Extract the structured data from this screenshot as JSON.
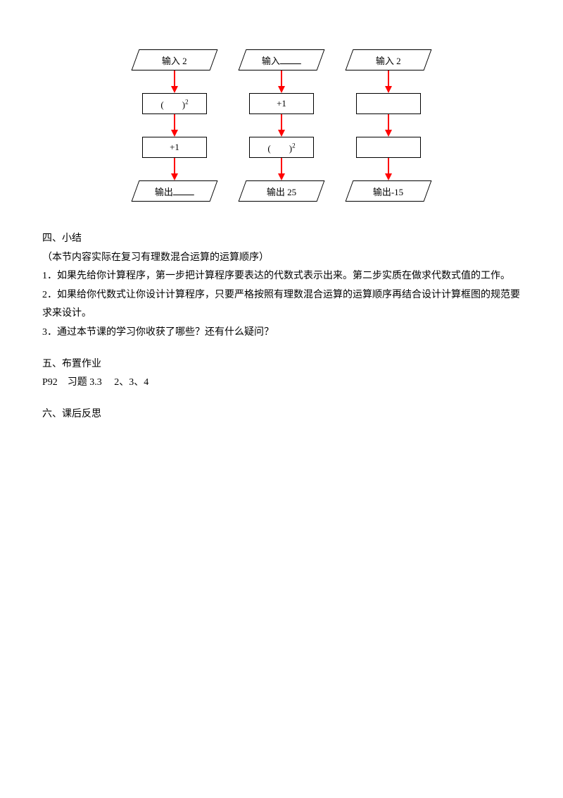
{
  "flowcharts": [
    {
      "input_label": "输入 2",
      "step1": "(　　)",
      "step1_sup": "2",
      "step2": "+1",
      "output_prefix": "输出",
      "output_value": "",
      "output_blank": true
    },
    {
      "input_prefix": "输入",
      "input_value": "",
      "input_blank": true,
      "step1": "+1",
      "step1_sup": "",
      "step2": "(　　)",
      "step2_sup": "2",
      "output_label": "输出 25"
    },
    {
      "input_label": "输入 2",
      "step1": "",
      "step2": "",
      "output_label": "输出-15"
    }
  ],
  "sections": {
    "s4_title": "四、小结",
    "s4_note": "（本节内容实际在复习有理数混合运算的运算顺序）",
    "s4_p1": "1．如果先给你计算程序，第一步把计算程序要表达的代数式表示出来。第二步实质在做求代数式值的工作。",
    "s4_p2": "2．如果给你代数式让你设计计算程序，只要严格按照有理数混合运算的运算顺序再结合设计计算框图的规范要求来设计。",
    "s4_p3": "3．通过本节课的学习你收获了哪些？还有什么疑问？",
    "s5_title": "五、布置作业",
    "s5_p1": "P92　习题 3.3　 2、3、4",
    "s6_title": "六、课后反思"
  },
  "colors": {
    "arrow": "#ff0000",
    "border": "#000000",
    "text": "#000000",
    "bg": "#ffffff"
  }
}
